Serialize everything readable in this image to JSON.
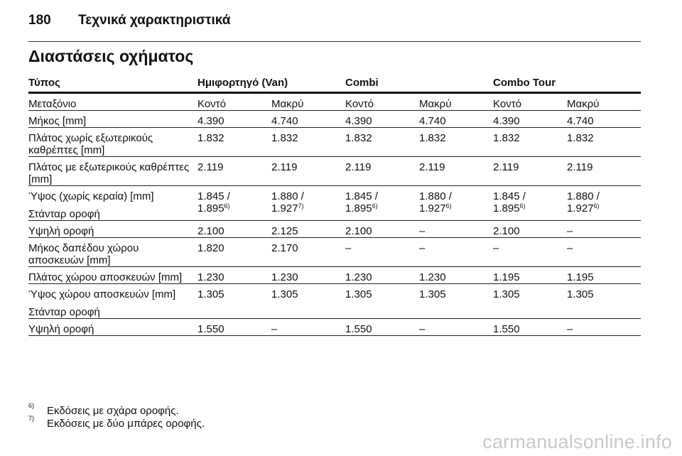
{
  "header": {
    "page_number": "180",
    "chapter_title": "Τεχνικά χαρακτηριστικά"
  },
  "section_title": "Διαστάσεις οχήματος",
  "table": {
    "group_headers": [
      "Τύπος",
      "Ημιφορτηγό (Van)",
      "Combi",
      "Combo Tour"
    ],
    "subheaders": [
      "Μεταξόνιο",
      "Κοντό",
      "Μακρύ",
      "Κοντό",
      "Μακρύ",
      "Κοντό",
      "Μακρύ"
    ],
    "rows": [
      {
        "label": "Μήκος [mm]",
        "values": [
          "4.390",
          "4.740",
          "4.390",
          "4.740",
          "4.390",
          "4.740"
        ]
      },
      {
        "label": "Πλάτος χωρίς εξωτερικούς καθρέπτες [mm]",
        "values": [
          "1.832",
          "1.832",
          "1.832",
          "1.832",
          "1.832",
          "1.832"
        ]
      },
      {
        "label": "Πλάτος με εξωτερικούς καθρέπτες [mm]",
        "values": [
          "2.119",
          "2.119",
          "2.119",
          "2.119",
          "2.119",
          "2.119"
        ]
      },
      {
        "label": "Ύψος (χωρίς κεραία) [mm]",
        "sublabel": "Στάνταρ οροφή",
        "values": [
          "1.845 /",
          "1.880 /",
          "1.845 /",
          "1.880 /",
          "1.845 /",
          "1.880 /"
        ],
        "values2": [
          "1.895",
          "1.927",
          "1.895",
          "1.927",
          "1.895",
          "1.927"
        ],
        "notes": [
          "6)",
          "7)",
          "6)",
          "6)",
          "6)",
          "6)"
        ]
      },
      {
        "label": "Υψηλή οροφή",
        "values": [
          "2.100",
          "2.125",
          "2.100",
          "–",
          "2.100",
          "–"
        ]
      },
      {
        "label": "Μήκος δαπέδου χώρου αποσκευών [mm]",
        "values": [
          "1.820",
          "2.170",
          "–",
          "–",
          "–",
          "–"
        ]
      },
      {
        "label": "Πλάτος χώρου αποσκευών [mm]",
        "values": [
          "1.230",
          "1.230",
          "1.230",
          "1.230",
          "1.195",
          "1.195"
        ]
      },
      {
        "label": "Ύψος χώρου αποσκευών [mm]",
        "sublabel": "Στάνταρ οροφή",
        "values": [
          "1.305",
          "1.305",
          "1.305",
          "1.305",
          "1.305",
          "1.305"
        ]
      },
      {
        "label": "Υψηλή οροφή",
        "values": [
          "1.550",
          "–",
          "1.550",
          "–",
          "1.550",
          "–"
        ]
      }
    ]
  },
  "footnotes": [
    {
      "mark": "6)",
      "text": "Εκδόσεις με σχάρα οροφής."
    },
    {
      "mark": "7)",
      "text": "Εκδόσεις με δύο μπάρες οροφής."
    }
  ],
  "watermark": "carmanualsonline.info"
}
